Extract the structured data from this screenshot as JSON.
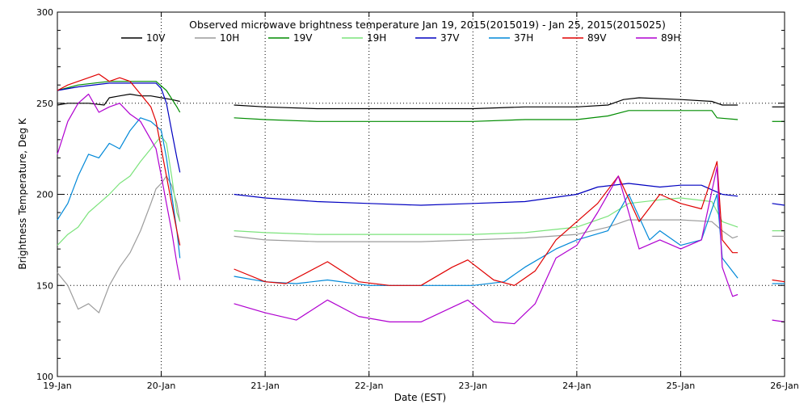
{
  "chart_data": {
    "type": "line",
    "title": "Observed microwave brightness temperature Jan 19, 2015(2015019) - Jan 25, 2015(2015025)",
    "xlabel": "Date (EST)",
    "ylabel": "Brightness Temperature, Deg K",
    "xlim": [
      0,
      7
    ],
    "ylim": [
      100,
      300
    ],
    "x_tick_labels": [
      "19-Jan",
      "20-Jan",
      "21-Jan",
      "22-Jan",
      "23-Jan",
      "24-Jan",
      "25-Jan",
      "26-Jan"
    ],
    "y_tick_labels": [
      "100",
      "150",
      "200",
      "250",
      "300"
    ],
    "grid": "dotted",
    "legend_position": "top",
    "series": [
      {
        "name": "10V",
        "color": "#000000",
        "segments": [
          [
            [
              0,
              249
            ],
            [
              0.1,
              250
            ],
            [
              0.3,
              250
            ],
            [
              0.45,
              249
            ],
            [
              0.5,
              253
            ],
            [
              0.6,
              254
            ],
            [
              0.7,
              255
            ],
            [
              0.8,
              254
            ],
            [
              0.9,
              254
            ],
            [
              1.0,
              253
            ],
            [
              1.1,
              252
            ],
            [
              1.18,
              251
            ]
          ],
          [
            [
              1.7,
              249
            ],
            [
              2.0,
              248
            ],
            [
              2.5,
              247
            ],
            [
              3.0,
              247
            ],
            [
              3.5,
              247
            ],
            [
              4.0,
              247
            ],
            [
              4.5,
              248
            ],
            [
              5.0,
              248
            ],
            [
              5.3,
              249
            ],
            [
              5.45,
              252
            ],
            [
              5.6,
              253
            ],
            [
              6.0,
              252
            ],
            [
              6.3,
              251
            ],
            [
              6.4,
              249
            ],
            [
              6.55,
              249
            ]
          ],
          [
            [
              6.88,
              248
            ],
            [
              7.0,
              248
            ]
          ]
        ]
      },
      {
        "name": "10H",
        "color": "#9c9c9c",
        "segments": [
          [
            [
              0,
              157
            ],
            [
              0.1,
              150
            ],
            [
              0.2,
              137
            ],
            [
              0.3,
              140
            ],
            [
              0.4,
              135
            ],
            [
              0.5,
              150
            ],
            [
              0.6,
              160
            ],
            [
              0.7,
              168
            ],
            [
              0.8,
              180
            ],
            [
              0.9,
              195
            ],
            [
              0.95,
              203
            ],
            [
              1.0,
              206
            ],
            [
              1.05,
              210
            ],
            [
              1.1,
              205
            ],
            [
              1.15,
              195
            ],
            [
              1.18,
              185
            ]
          ],
          [
            [
              1.7,
              177
            ],
            [
              2.0,
              175
            ],
            [
              2.5,
              174
            ],
            [
              3.0,
              174
            ],
            [
              3.5,
              174
            ],
            [
              4.0,
              175
            ],
            [
              4.5,
              176
            ],
            [
              5.0,
              178
            ],
            [
              5.3,
              182
            ],
            [
              5.5,
              186
            ],
            [
              6.0,
              186
            ],
            [
              6.3,
              185
            ],
            [
              6.4,
              180
            ],
            [
              6.5,
              176
            ],
            [
              6.55,
              177
            ]
          ],
          [
            [
              6.88,
              177
            ],
            [
              7.0,
              177
            ]
          ]
        ]
      },
      {
        "name": "19V",
        "color": "#008c00",
        "segments": [
          [
            [
              0,
              257
            ],
            [
              0.2,
              260
            ],
            [
              0.5,
              262
            ],
            [
              0.8,
              262
            ],
            [
              0.95,
              262
            ],
            [
              1.05,
              257
            ],
            [
              1.15,
              248
            ],
            [
              1.18,
              245
            ]
          ],
          [
            [
              1.7,
              242
            ],
            [
              2.0,
              241
            ],
            [
              2.5,
              240
            ],
            [
              3.0,
              240
            ],
            [
              3.5,
              240
            ],
            [
              4.0,
              240
            ],
            [
              4.5,
              241
            ],
            [
              5.0,
              241
            ],
            [
              5.3,
              243
            ],
            [
              5.5,
              246
            ],
            [
              6.0,
              246
            ],
            [
              6.3,
              246
            ],
            [
              6.35,
              242
            ],
            [
              6.55,
              241
            ]
          ],
          [
            [
              6.88,
              240
            ],
            [
              7.0,
              240
            ]
          ]
        ]
      },
      {
        "name": "19H",
        "color": "#7ce37c",
        "segments": [
          [
            [
              0,
              172
            ],
            [
              0.1,
              178
            ],
            [
              0.2,
              182
            ],
            [
              0.3,
              190
            ],
            [
              0.4,
              195
            ],
            [
              0.5,
              200
            ],
            [
              0.6,
              206
            ],
            [
              0.7,
              210
            ],
            [
              0.8,
              218
            ],
            [
              0.9,
              225
            ],
            [
              1.0,
              232
            ],
            [
              1.05,
              228
            ],
            [
              1.1,
              210
            ],
            [
              1.15,
              190
            ],
            [
              1.18,
              185
            ]
          ],
          [
            [
              1.7,
              180
            ],
            [
              2.0,
              179
            ],
            [
              2.5,
              178
            ],
            [
              3.0,
              178
            ],
            [
              3.5,
              178
            ],
            [
              4.0,
              178
            ],
            [
              4.5,
              179
            ],
            [
              5.0,
              182
            ],
            [
              5.3,
              188
            ],
            [
              5.5,
              195
            ],
            [
              5.8,
              197
            ],
            [
              6.0,
              198
            ],
            [
              6.3,
              196
            ],
            [
              6.4,
              185
            ],
            [
              6.55,
              182
            ]
          ],
          [
            [
              6.88,
              180
            ],
            [
              7.0,
              180
            ]
          ]
        ]
      },
      {
        "name": "37V",
        "color": "#0000c0",
        "segments": [
          [
            [
              0,
              257
            ],
            [
              0.2,
              259
            ],
            [
              0.5,
              261
            ],
            [
              0.8,
              261
            ],
            [
              0.95,
              261
            ],
            [
              1.0,
              258
            ],
            [
              1.05,
              250
            ],
            [
              1.1,
              235
            ],
            [
              1.15,
              220
            ],
            [
              1.18,
              212
            ]
          ],
          [
            [
              1.7,
              200
            ],
            [
              2.0,
              198
            ],
            [
              2.5,
              196
            ],
            [
              3.0,
              195
            ],
            [
              3.5,
              194
            ],
            [
              4.0,
              195
            ],
            [
              4.5,
              196
            ],
            [
              5.0,
              200
            ],
            [
              5.2,
              204
            ],
            [
              5.5,
              206
            ],
            [
              5.8,
              204
            ],
            [
              6.0,
              205
            ],
            [
              6.2,
              205
            ],
            [
              6.4,
              200
            ],
            [
              6.55,
              199
            ]
          ],
          [
            [
              6.88,
              195
            ],
            [
              7.0,
              194
            ]
          ]
        ]
      },
      {
        "name": "37H",
        "color": "#0088d8",
        "segments": [
          [
            [
              0,
              186
            ],
            [
              0.1,
              195
            ],
            [
              0.2,
              210
            ],
            [
              0.3,
              222
            ],
            [
              0.4,
              220
            ],
            [
              0.5,
              228
            ],
            [
              0.6,
              225
            ],
            [
              0.7,
              235
            ],
            [
              0.8,
              242
            ],
            [
              0.9,
              240
            ],
            [
              1.0,
              235
            ],
            [
              1.05,
              220
            ],
            [
              1.1,
              200
            ],
            [
              1.15,
              180
            ],
            [
              1.18,
              165
            ]
          ],
          [
            [
              1.7,
              155
            ],
            [
              2.0,
              152
            ],
            [
              2.3,
              151
            ],
            [
              2.6,
              153
            ],
            [
              3.0,
              150
            ],
            [
              3.5,
              150
            ],
            [
              4.0,
              150
            ],
            [
              4.3,
              152
            ],
            [
              4.5,
              160
            ],
            [
              4.8,
              170
            ],
            [
              5.0,
              175
            ],
            [
              5.3,
              180
            ],
            [
              5.5,
              200
            ],
            [
              5.7,
              175
            ],
            [
              5.8,
              180
            ],
            [
              6.0,
              172
            ],
            [
              6.2,
              175
            ],
            [
              6.35,
              200
            ],
            [
              6.4,
              165
            ],
            [
              6.55,
              154
            ]
          ],
          [
            [
              6.88,
              151
            ],
            [
              7.0,
              151
            ]
          ]
        ]
      },
      {
        "name": "89V",
        "color": "#e00000",
        "segments": [
          [
            [
              0,
              257
            ],
            [
              0.1,
              260
            ],
            [
              0.2,
              262
            ],
            [
              0.3,
              264
            ],
            [
              0.4,
              266
            ],
            [
              0.5,
              262
            ],
            [
              0.6,
              264
            ],
            [
              0.7,
              262
            ],
            [
              0.8,
              255
            ],
            [
              0.9,
              248
            ],
            [
              0.95,
              240
            ],
            [
              1.0,
              225
            ],
            [
              1.05,
              210
            ],
            [
              1.1,
              195
            ],
            [
              1.15,
              180
            ],
            [
              1.18,
              172
            ]
          ],
          [
            [
              1.7,
              159
            ],
            [
              2.0,
              152
            ],
            [
              2.2,
              151
            ],
            [
              2.6,
              163
            ],
            [
              2.9,
              152
            ],
            [
              3.2,
              150
            ],
            [
              3.5,
              150
            ],
            [
              3.8,
              160
            ],
            [
              3.95,
              164
            ],
            [
              4.2,
              153
            ],
            [
              4.4,
              150
            ],
            [
              4.6,
              158
            ],
            [
              4.8,
              175
            ],
            [
              5.0,
              185
            ],
            [
              5.2,
              195
            ],
            [
              5.4,
              210
            ],
            [
              5.6,
              185
            ],
            [
              5.8,
              200
            ],
            [
              6.0,
              195
            ],
            [
              6.2,
              192
            ],
            [
              6.35,
              218
            ],
            [
              6.4,
              175
            ],
            [
              6.5,
              168
            ],
            [
              6.55,
              168
            ]
          ],
          [
            [
              6.88,
              153
            ],
            [
              7.0,
              152
            ]
          ]
        ]
      },
      {
        "name": "89H",
        "color": "#b000d0",
        "segments": [
          [
            [
              0,
              222
            ],
            [
              0.1,
              240
            ],
            [
              0.2,
              250
            ],
            [
              0.3,
              255
            ],
            [
              0.4,
              245
            ],
            [
              0.5,
              248
            ],
            [
              0.6,
              250
            ],
            [
              0.7,
              244
            ],
            [
              0.8,
              240
            ],
            [
              0.9,
              230
            ],
            [
              0.95,
              225
            ],
            [
              1.0,
              210
            ],
            [
              1.05,
              195
            ],
            [
              1.1,
              180
            ],
            [
              1.15,
              162
            ],
            [
              1.18,
              153
            ]
          ],
          [
            [
              1.7,
              140
            ],
            [
              2.0,
              135
            ],
            [
              2.3,
              131
            ],
            [
              2.6,
              142
            ],
            [
              2.9,
              133
            ],
            [
              3.2,
              130
            ],
            [
              3.5,
              130
            ],
            [
              3.8,
              138
            ],
            [
              3.95,
              142
            ],
            [
              4.2,
              130
            ],
            [
              4.4,
              129
            ],
            [
              4.6,
              140
            ],
            [
              4.8,
              165
            ],
            [
              5.0,
              172
            ],
            [
              5.2,
              190
            ],
            [
              5.4,
              210
            ],
            [
              5.6,
              170
            ],
            [
              5.8,
              175
            ],
            [
              6.0,
              170
            ],
            [
              6.2,
              175
            ],
            [
              6.35,
              215
            ],
            [
              6.4,
              160
            ],
            [
              6.5,
              144
            ],
            [
              6.55,
              145
            ]
          ],
          [
            [
              6.88,
              131
            ],
            [
              7.0,
              130
            ]
          ]
        ]
      }
    ]
  }
}
